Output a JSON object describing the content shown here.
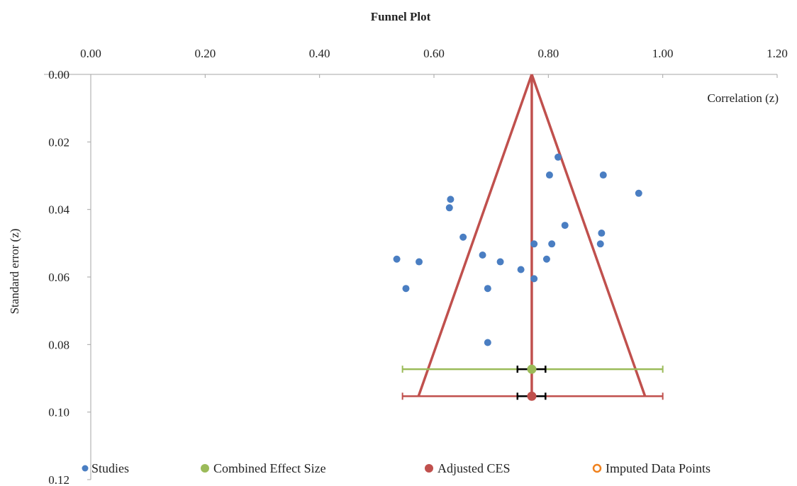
{
  "chart_data": {
    "type": "scatter",
    "title": "Funnel Plot",
    "xlabel": "Correlation (z)",
    "ylabel": "Standard error (z)",
    "xlim": [
      0,
      1.2
    ],
    "ylim": [
      0,
      0.12
    ],
    "x_ticks": [
      "0.00",
      "0.20",
      "0.40",
      "0.60",
      "0.80",
      "1.00",
      "1.20"
    ],
    "y_ticks": [
      "0.00",
      "0.02",
      "0.04",
      "0.06",
      "0.08",
      "0.10",
      "0.12"
    ],
    "x_axis_position": "top",
    "y_axis_reversed": true,
    "grid": false,
    "legend_position": "bottom",
    "legend": [
      {
        "key": "studies",
        "label": "Studies"
      },
      {
        "key": "combined",
        "label": "Combined Effect Size"
      },
      {
        "key": "adjusted",
        "label": "Adjusted CES"
      },
      {
        "key": "imputed",
        "label": "Imputed Data Points"
      }
    ],
    "colors": {
      "studies": "#4a7ec2",
      "combined": "#9bbb59",
      "adjusted": "#c0504d",
      "imputed": "#f0821e",
      "axis": "#a6a6a6"
    },
    "series": [
      {
        "name": "Studies",
        "marker": "filled-circle",
        "points": [
          {
            "x": 0.817,
            "y": 0.0245
          },
          {
            "x": 0.802,
            "y": 0.0298
          },
          {
            "x": 0.896,
            "y": 0.0298
          },
          {
            "x": 0.958,
            "y": 0.0352
          },
          {
            "x": 0.629,
            "y": 0.037
          },
          {
            "x": 0.627,
            "y": 0.0395
          },
          {
            "x": 0.829,
            "y": 0.0447
          },
          {
            "x": 0.893,
            "y": 0.047
          },
          {
            "x": 0.651,
            "y": 0.0482
          },
          {
            "x": 0.775,
            "y": 0.0502
          },
          {
            "x": 0.806,
            "y": 0.0502
          },
          {
            "x": 0.891,
            "y": 0.0502
          },
          {
            "x": 0.685,
            "y": 0.0535
          },
          {
            "x": 0.797,
            "y": 0.0547
          },
          {
            "x": 0.535,
            "y": 0.0547
          },
          {
            "x": 0.574,
            "y": 0.0555
          },
          {
            "x": 0.716,
            "y": 0.0555
          },
          {
            "x": 0.752,
            "y": 0.0578
          },
          {
            "x": 0.775,
            "y": 0.0605
          },
          {
            "x": 0.551,
            "y": 0.0634
          },
          {
            "x": 0.694,
            "y": 0.0634
          },
          {
            "x": 0.694,
            "y": 0.0794
          }
        ]
      },
      {
        "name": "Combined Effect Size",
        "marker": "filled-circle",
        "points": [
          {
            "x": 0.771,
            "y": 0.0873
          }
        ],
        "ci_inner": [
          0.746,
          0.795
        ],
        "ci_outer": [
          0.545,
          1.0
        ]
      },
      {
        "name": "Adjusted CES",
        "marker": "filled-circle",
        "points": [
          {
            "x": 0.771,
            "y": 0.0953
          }
        ],
        "ci_inner": [
          0.746,
          0.795
        ],
        "ci_outer": [
          0.545,
          1.0
        ]
      },
      {
        "name": "Imputed Data Points",
        "marker": "hollow-circle",
        "points": []
      }
    ],
    "funnel": {
      "apex": {
        "x": 0.771,
        "y": 0
      },
      "base_left": {
        "x": 0.573,
        "y": 0.0953
      },
      "base_right": {
        "x": 0.969,
        "y": 0.0953
      }
    }
  }
}
